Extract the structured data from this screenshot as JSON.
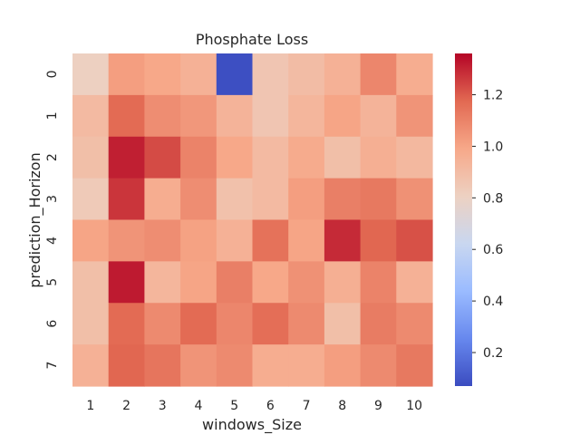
{
  "chart_data": {
    "type": "heatmap",
    "title": "Phosphate Loss",
    "xlabel": "windows_Size",
    "ylabel": "prediction_Horizon",
    "x_categories": [
      "1",
      "2",
      "3",
      "4",
      "5",
      "6",
      "7",
      "8",
      "9",
      "10"
    ],
    "y_categories": [
      "0",
      "1",
      "2",
      "3",
      "4",
      "5",
      "6",
      "7"
    ],
    "values": [
      [
        0.81,
        1.02,
        0.99,
        0.95,
        0.08,
        0.86,
        0.9,
        0.95,
        1.09,
        0.97
      ],
      [
        0.91,
        1.17,
        1.07,
        1.04,
        0.94,
        0.86,
        0.93,
        1.0,
        0.94,
        1.05
      ],
      [
        0.89,
        1.31,
        1.23,
        1.1,
        0.99,
        0.91,
        0.98,
        0.89,
        0.96,
        0.92
      ],
      [
        0.84,
        1.27,
        0.97,
        1.07,
        0.88,
        0.91,
        1.02,
        1.11,
        1.13,
        1.06
      ],
      [
        1.0,
        1.05,
        1.07,
        1.01,
        0.95,
        1.15,
        1.0,
        1.29,
        1.18,
        1.22
      ],
      [
        0.89,
        1.32,
        0.93,
        1.0,
        1.11,
        0.99,
        1.06,
        0.96,
        1.1,
        0.95
      ],
      [
        0.89,
        1.17,
        1.08,
        1.17,
        1.09,
        1.16,
        1.08,
        0.89,
        1.12,
        1.08
      ],
      [
        0.95,
        1.18,
        1.14,
        1.05,
        1.08,
        0.97,
        0.97,
        1.02,
        1.08,
        1.13
      ]
    ],
    "vmin": 0.07,
    "vmax": 1.36,
    "colormap": "coolwarm",
    "colorbar_ticks": [
      0.2,
      0.4,
      0.6,
      0.8,
      1.0,
      1.2
    ],
    "colorbar_tick_labels": [
      "0.2",
      "0.4",
      "0.6",
      "0.8",
      "1.0",
      "1.2"
    ],
    "colorbar_stops": [
      "#3b4cc0",
      "#6788ee",
      "#9abbff",
      "#c9d7f0",
      "#edd1c2",
      "#f7a889",
      "#e26952",
      "#b40426"
    ],
    "grid": false,
    "legend": "colorbar-right"
  }
}
